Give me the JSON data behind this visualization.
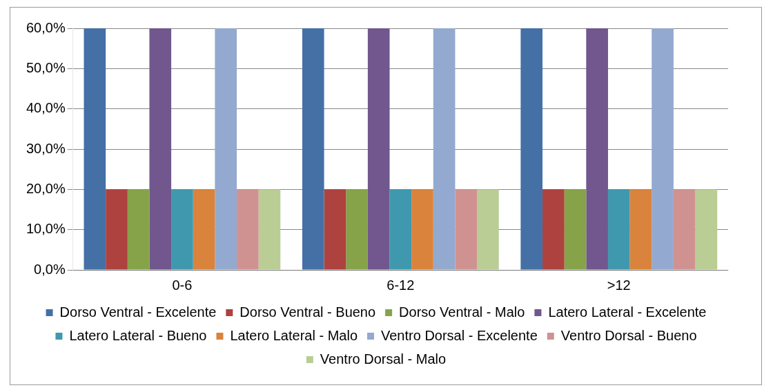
{
  "chart_data": {
    "type": "bar",
    "categories": [
      "0-6",
      "6-12",
      ">12"
    ],
    "series": [
      {
        "name": "Dorso Ventral - Excelente",
        "color": "#4470a6",
        "values": [
          60,
          60,
          60
        ]
      },
      {
        "name": "Dorso Ventral - Bueno",
        "color": "#ad423f",
        "values": [
          20,
          20,
          20
        ]
      },
      {
        "name": "Dorso Ventral - Malo",
        "color": "#86a34a",
        "values": [
          20,
          20,
          20
        ]
      },
      {
        "name": "Latero Lateral - Excelente",
        "color": "#71578e",
        "values": [
          60,
          60,
          60
        ]
      },
      {
        "name": "Latero Lateral - Bueno",
        "color": "#4098ae",
        "values": [
          20,
          20,
          20
        ]
      },
      {
        "name": "Latero Lateral - Malo",
        "color": "#da833c",
        "values": [
          20,
          20,
          20
        ]
      },
      {
        "name": "Ventro Dorsal - Excelente",
        "color": "#93a9cf",
        "values": [
          60,
          60,
          60
        ]
      },
      {
        "name": "Ventro Dorsal - Bueno",
        "color": "#d09291",
        "values": [
          20,
          20,
          20
        ]
      },
      {
        "name": "Ventro Dorsal - Malo",
        "color": "#b9cd95",
        "values": [
          20,
          20,
          20
        ]
      }
    ],
    "ylim": [
      0,
      60
    ],
    "yticks": [
      {
        "value": 0,
        "label": "0,0%"
      },
      {
        "value": 10,
        "label": "10,0%"
      },
      {
        "value": 20,
        "label": "20,0%"
      },
      {
        "value": 30,
        "label": "30,0%"
      },
      {
        "value": 40,
        "label": "40,0%"
      },
      {
        "value": 50,
        "label": "50,0%"
      },
      {
        "value": 60,
        "label": "60,0%"
      }
    ],
    "grid": "y",
    "legend": "bottom"
  }
}
